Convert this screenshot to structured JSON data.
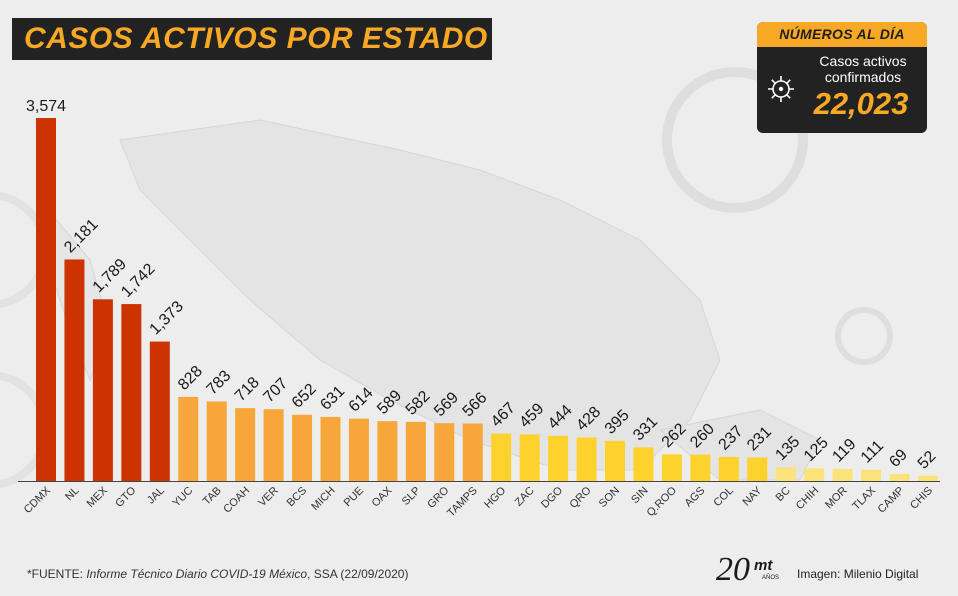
{
  "title": "CASOS ACTIVOS POR ESTADO",
  "summary": {
    "header": "NÚMEROS AL DÍA",
    "subtitle_line1": "Casos activos",
    "subtitle_line2": "confirmados",
    "value": "22,023",
    "icon": "virus-icon"
  },
  "footer": {
    "source_prefix": "*FUENTE: ",
    "source_italic": "Informe Técnico Diario COVID-19 México",
    "source_suffix": ", SSA (22/09/2020)",
    "credit": "Imagen: Milenio Digital",
    "logo_number": "20",
    "logo_brand": "mt",
    "logo_sub": "AÑOS"
  },
  "colors": {
    "tier1": "#cc3300",
    "tier2": "#f7a63a",
    "tier3": "#fdd22d",
    "tier4": "#fce27a",
    "title_bg": "#222222",
    "accent": "#f7a824"
  },
  "chart_data": {
    "type": "bar",
    "categories": [
      "CDMX",
      "NL",
      "MEX",
      "GTO",
      "JAL",
      "YUC",
      "TAB",
      "COAH",
      "VER",
      "BCS",
      "MICH",
      "PUE",
      "OAX",
      "SLP",
      "GRO",
      "TAMPS",
      "HGO",
      "ZAC",
      "DGO",
      "QRO",
      "SON",
      "SIN",
      "Q.ROO",
      "AGS",
      "COL",
      "NAY",
      "BC",
      "CHIH",
      "MOR",
      "TLAX",
      "CAMP",
      "CHIS"
    ],
    "values": [
      3574,
      2181,
      1789,
      1742,
      1373,
      828,
      783,
      718,
      707,
      652,
      631,
      614,
      589,
      582,
      569,
      566,
      467,
      459,
      444,
      428,
      395,
      331,
      262,
      260,
      237,
      231,
      135,
      125,
      119,
      111,
      69,
      52
    ],
    "value_labels": [
      "3,574",
      "2,181",
      "1,789",
      "1,742",
      "1,373",
      "828",
      "783",
      "718",
      "707",
      "652",
      "631",
      "614",
      "589",
      "582",
      "569",
      "566",
      "467",
      "459",
      "444",
      "428",
      "395",
      "331",
      "262",
      "260",
      "237",
      "231",
      "135",
      "125",
      "119",
      "111",
      "69",
      "52"
    ],
    "tiers": [
      1,
      1,
      1,
      1,
      1,
      2,
      2,
      2,
      2,
      2,
      2,
      2,
      2,
      2,
      2,
      2,
      3,
      3,
      3,
      3,
      3,
      3,
      3,
      3,
      3,
      3,
      4,
      4,
      4,
      4,
      4,
      4
    ],
    "ylim": [
      0,
      3574
    ],
    "grid": false,
    "legend": "none"
  }
}
